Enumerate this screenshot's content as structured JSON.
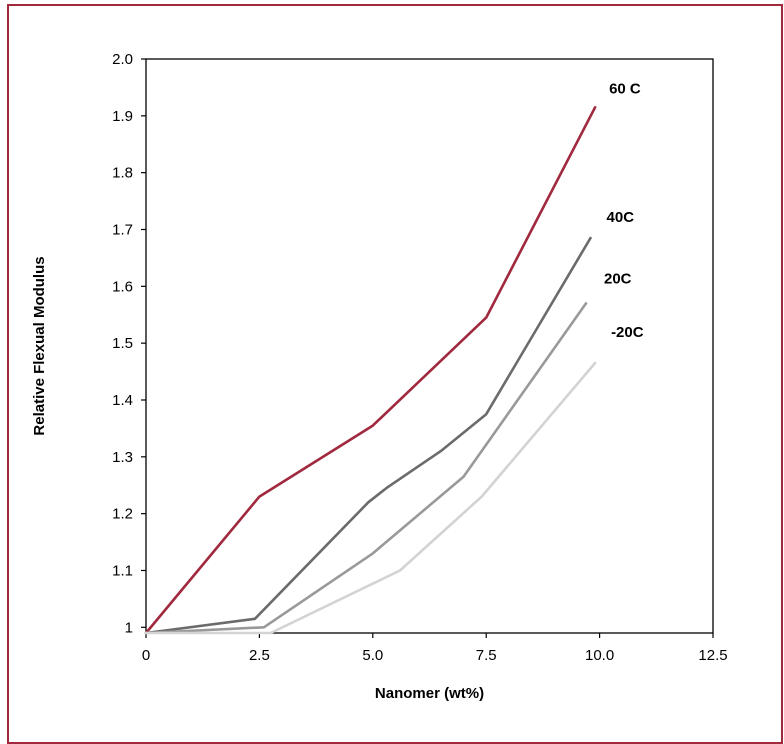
{
  "frame_color": "#a0293e",
  "chart_data": {
    "type": "line",
    "title": "",
    "xlabel": "Nanomer (wt%)",
    "ylabel": "Relative Flexual Modulus",
    "xlim": [
      0,
      12.5
    ],
    "ylim": [
      0.99,
      2.0
    ],
    "x_ticks": [
      {
        "value": 0,
        "label": "0"
      },
      {
        "value": 2.5,
        "label": "2.5"
      },
      {
        "value": 5,
        "label": "5.0"
      },
      {
        "value": 7.5,
        "label": "7.5"
      },
      {
        "value": 10,
        "label": "10.0"
      },
      {
        "value": 12.5,
        "label": "12.5"
      }
    ],
    "y_ticks": [
      {
        "value": 1.0,
        "label": "1"
      },
      {
        "value": 1.1,
        "label": "1.1"
      },
      {
        "value": 1.2,
        "label": "1.2"
      },
      {
        "value": 1.3,
        "label": "1.3"
      },
      {
        "value": 1.4,
        "label": "1.4"
      },
      {
        "value": 1.5,
        "label": "1.5"
      },
      {
        "value": 1.6,
        "label": "1.6"
      },
      {
        "value": 1.7,
        "label": "1.7"
      },
      {
        "value": 1.8,
        "label": "1.8"
      },
      {
        "value": 1.9,
        "label": "1.9"
      },
      {
        "value": 2.0,
        "label": "2.0"
      }
    ],
    "grid": false,
    "legend": "inline labels at line ends",
    "series": [
      {
        "name": "60 C",
        "color": "#a0293e",
        "points": [
          [
            0,
            0.99
          ],
          [
            2.5,
            1.23
          ],
          [
            5.0,
            1.355
          ],
          [
            7.5,
            1.545
          ],
          [
            9.9,
            1.915
          ]
        ]
      },
      {
        "name": "40C",
        "color": "#6b6b6b",
        "points": [
          [
            0,
            0.99
          ],
          [
            2.4,
            1.015
          ],
          [
            4.9,
            1.22
          ],
          [
            5.3,
            1.245
          ],
          [
            6.5,
            1.31
          ],
          [
            7.5,
            1.375
          ],
          [
            9.8,
            1.685
          ]
        ]
      },
      {
        "name": "20C",
        "color": "#999999",
        "points": [
          [
            0,
            0.99
          ],
          [
            2.6,
            1.0
          ],
          [
            5.0,
            1.13
          ],
          [
            7.0,
            1.265
          ],
          [
            9.7,
            1.57
          ]
        ]
      },
      {
        "name": "-20C",
        "color": "#d3d3d3",
        "points": [
          [
            0,
            0.99
          ],
          [
            2.75,
            0.99
          ],
          [
            5.6,
            1.1
          ],
          [
            7.4,
            1.23
          ],
          [
            9.9,
            1.465
          ]
        ]
      }
    ]
  }
}
